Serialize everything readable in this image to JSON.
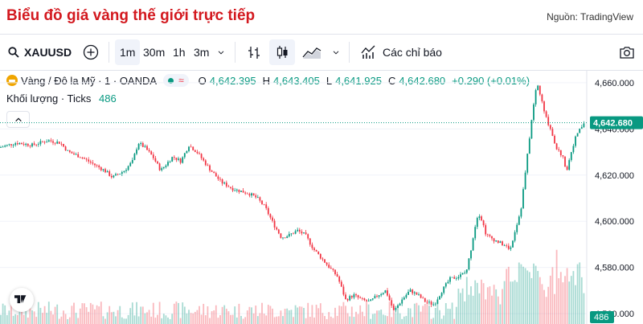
{
  "header": {
    "title": "Biểu đồ giá vàng thế giới trực tiếp",
    "source": "Nguồn: TradingView"
  },
  "toolbar": {
    "symbol": "XAUUSD",
    "intervals": [
      "1m",
      "30m",
      "1h",
      "3m"
    ],
    "selected_interval": "1m",
    "indicators_label": "Các chỉ báo"
  },
  "legend": {
    "instrument": "Vàng / Đô la Mỹ · 1 · OANDA",
    "wave_glyph": "≈",
    "o_label": "O",
    "o": "4,642.395",
    "h_label": "H",
    "h": "4,643.405",
    "l_label": "L",
    "l": "4,641.925",
    "c_label": "C",
    "c": "4,642.680",
    "change": "+0.290 (+0.01%)",
    "volume_label": "Khối lượng · Ticks",
    "volume_value": "486"
  },
  "chart_data": {
    "type": "candlestick",
    "y_ticks": [
      "4,660.000",
      "4,640.000",
      "4,620.000",
      "4,600.000",
      "4,580.000",
      "4,560.000"
    ],
    "y_tick_values": [
      4660,
      4640,
      4620,
      4600,
      4580,
      4560
    ],
    "ylim": [
      4555.5,
      4665.2
    ],
    "last_price": "4,642.680",
    "last_price_value": 4642.68,
    "last_volume": "486",
    "close_path": [
      [
        0,
        4632
      ],
      [
        20,
        4634
      ],
      [
        40,
        4633
      ],
      [
        60,
        4635
      ],
      [
        75,
        4634
      ],
      [
        85,
        4630
      ],
      [
        100,
        4628
      ],
      [
        115,
        4625
      ],
      [
        130,
        4622
      ],
      [
        140,
        4619
      ],
      [
        155,
        4622
      ],
      [
        165,
        4626
      ],
      [
        172,
        4634
      ],
      [
        180,
        4632
      ],
      [
        190,
        4628
      ],
      [
        200,
        4622
      ],
      [
        215,
        4628
      ],
      [
        225,
        4626
      ],
      [
        235,
        4633
      ],
      [
        245,
        4630
      ],
      [
        260,
        4623
      ],
      [
        275,
        4617
      ],
      [
        290,
        4614
      ],
      [
        300,
        4613
      ],
      [
        310,
        4612
      ],
      [
        320,
        4610
      ],
      [
        330,
        4606
      ],
      [
        340,
        4599
      ],
      [
        350,
        4593
      ],
      [
        360,
        4594
      ],
      [
        370,
        4596
      ],
      [
        380,
        4594
      ],
      [
        390,
        4588
      ],
      [
        400,
        4584
      ],
      [
        410,
        4580
      ],
      [
        420,
        4576
      ],
      [
        430,
        4566
      ],
      [
        440,
        4568
      ],
      [
        450,
        4566
      ],
      [
        460,
        4565
      ],
      [
        470,
        4568
      ],
      [
        480,
        4570
      ],
      [
        490,
        4561
      ],
      [
        500,
        4566
      ],
      [
        510,
        4570
      ],
      [
        520,
        4568
      ],
      [
        530,
        4565
      ],
      [
        540,
        4564
      ],
      [
        550,
        4570
      ],
      [
        560,
        4575
      ],
      [
        570,
        4576
      ],
      [
        580,
        4578
      ],
      [
        585,
        4586
      ],
      [
        590,
        4596
      ],
      [
        595,
        4604
      ],
      [
        600,
        4600
      ],
      [
        605,
        4594
      ],
      [
        615,
        4592
      ],
      [
        625,
        4590
      ],
      [
        635,
        4588
      ],
      [
        640,
        4595
      ],
      [
        648,
        4605
      ],
      [
        655,
        4625
      ],
      [
        660,
        4640
      ],
      [
        665,
        4653
      ],
      [
        668,
        4660
      ],
      [
        672,
        4655
      ],
      [
        678,
        4646
      ],
      [
        685,
        4640
      ],
      [
        692,
        4632
      ],
      [
        700,
        4628
      ],
      [
        705,
        4622
      ],
      [
        712,
        4632
      ],
      [
        718,
        4638
      ],
      [
        722,
        4640
      ],
      [
        727,
        4642.68
      ]
    ]
  },
  "colors": {
    "up": "#089981",
    "down": "#f23645",
    "title_red": "#d3191f",
    "grid": "#f0f3fa"
  },
  "icons": [
    "search-icon",
    "plus-icon",
    "chevron-down-icon",
    "bar-type-icon",
    "candle-icon",
    "area-icon",
    "indicator-icon",
    "camera-icon",
    "tradingview-logo"
  ]
}
